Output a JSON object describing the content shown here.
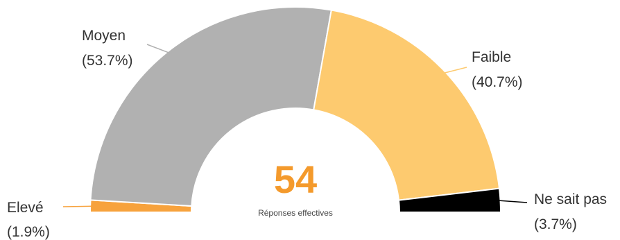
{
  "colors": {
    "Elevé": "#f7a23c",
    "Moyen": "#b1b1b1",
    "Faible": "#fdca6f",
    "Ne sait pas": "#000000",
    "total_value": "#f49a2c",
    "segment_border": "#ffffff"
  },
  "center": {
    "value": "54",
    "caption": "Réponses effectives"
  },
  "chart_data": {
    "type": "pie",
    "variant": "semi-donut",
    "categories": [
      "Elevé",
      "Moyen",
      "Faible",
      "Ne sait pas"
    ],
    "values": [
      1.9,
      53.7,
      40.7,
      3.7
    ],
    "labels": [
      "(1.9%)",
      "(53.7%)",
      "(40.7%)",
      "(3.7%)"
    ],
    "total": 54,
    "legend": "none"
  }
}
